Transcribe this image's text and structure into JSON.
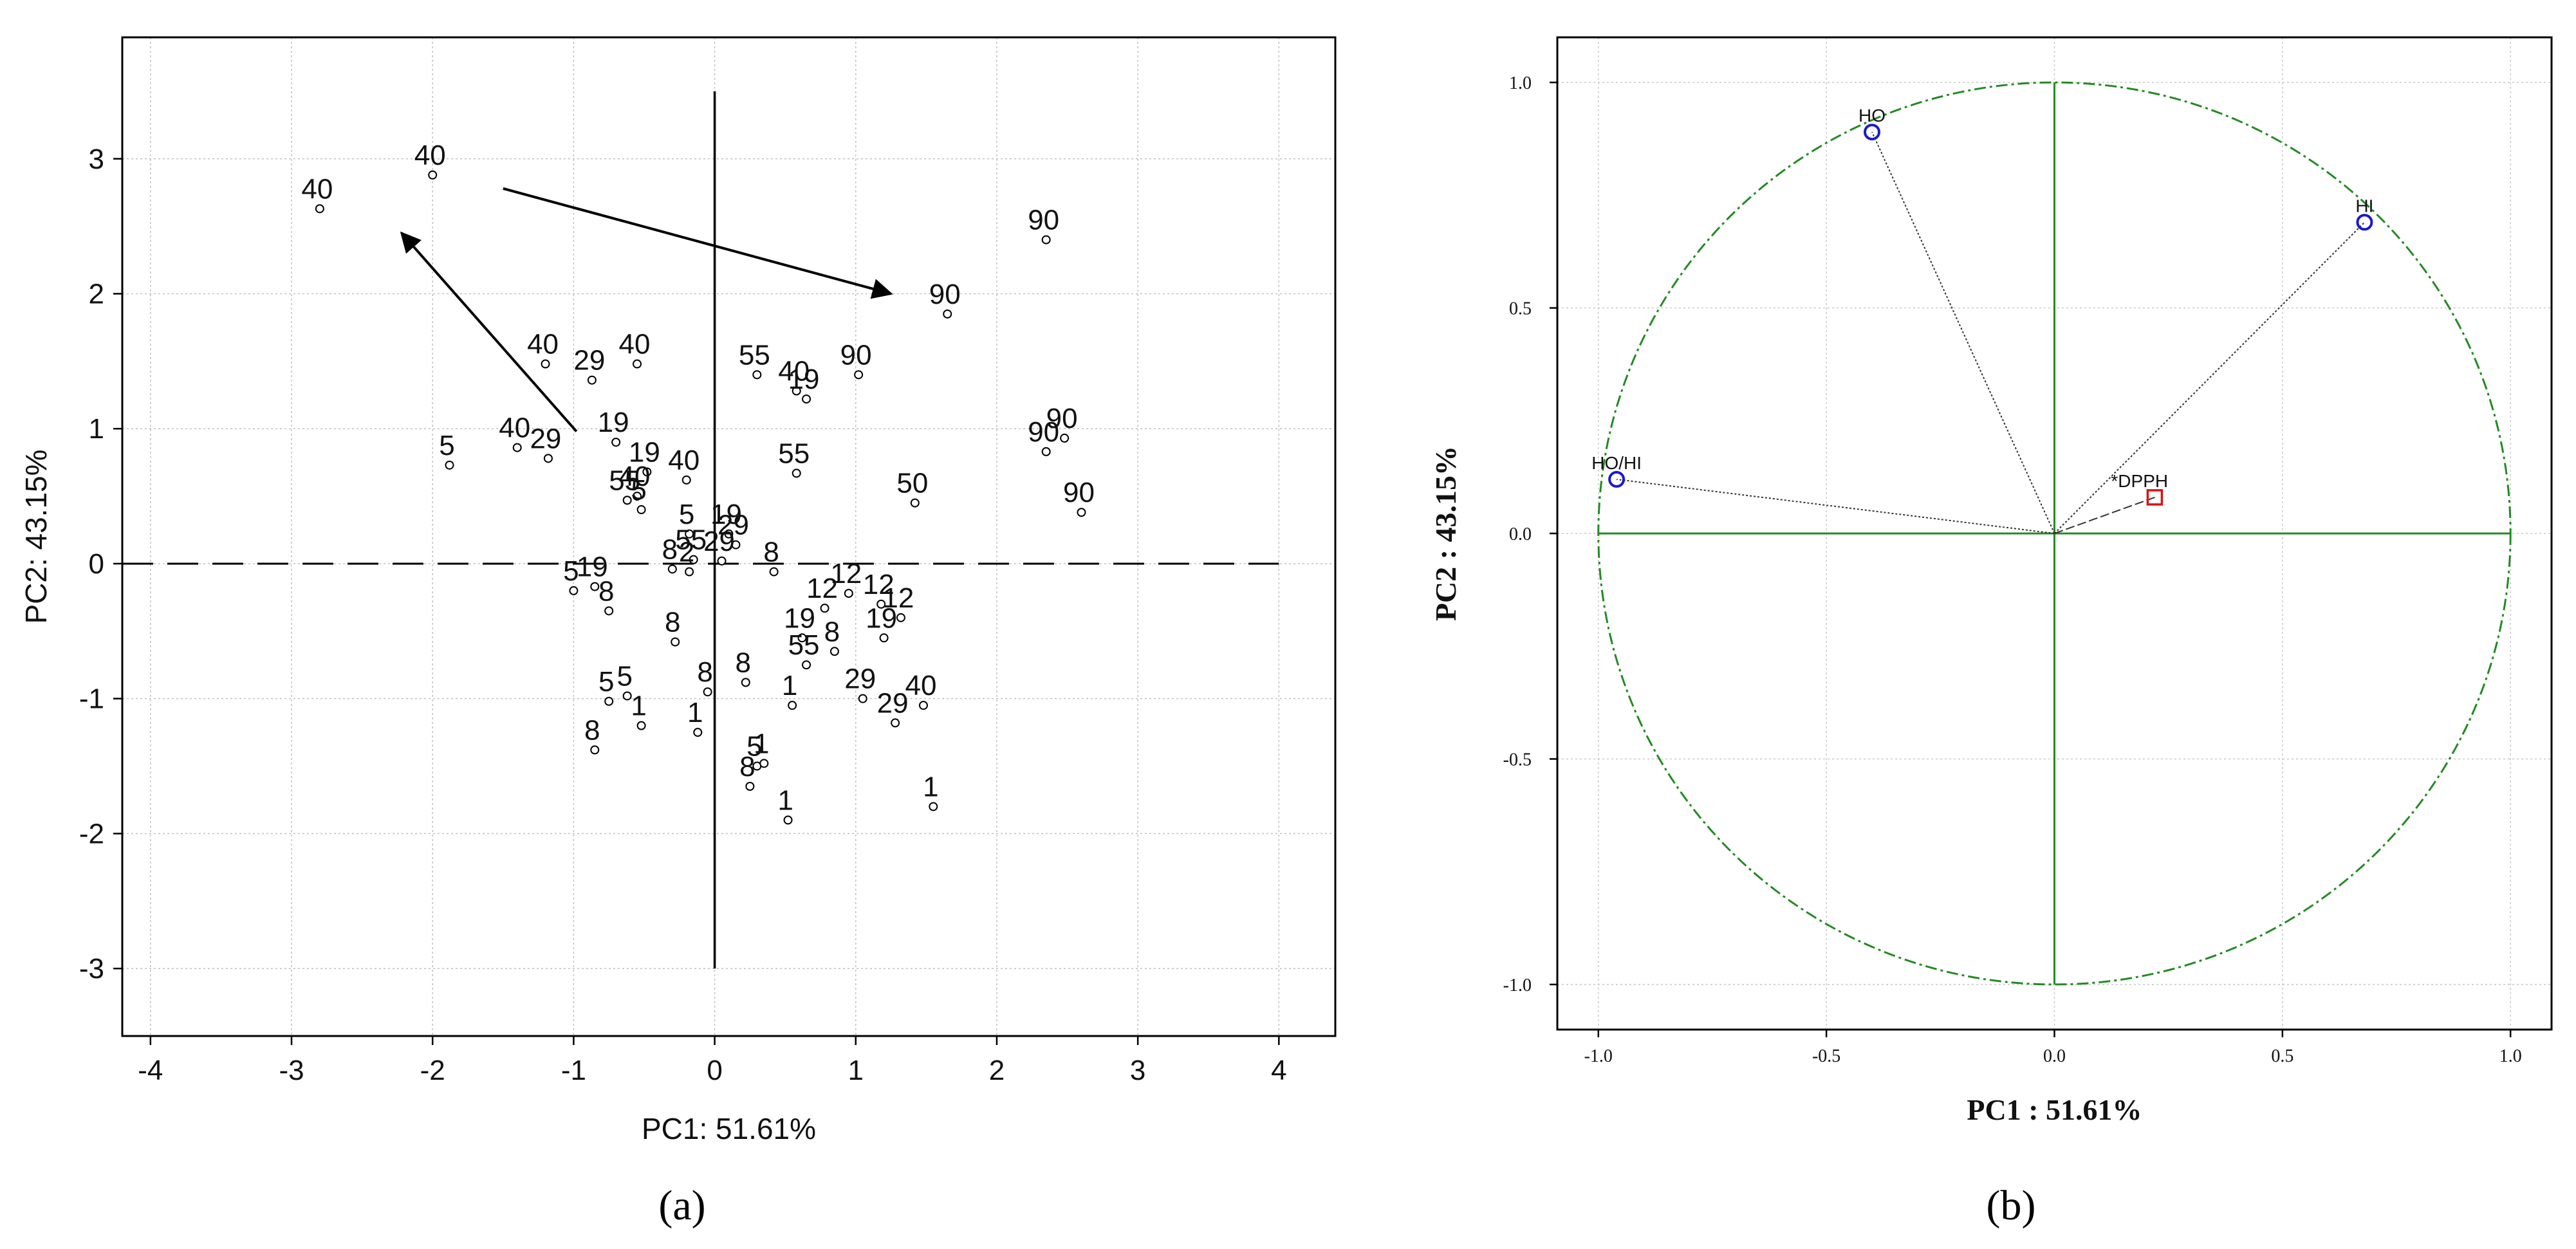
{
  "figure": {
    "panel_a_label": "(a)",
    "panel_b_label": "(b)"
  },
  "chart_data": [
    {
      "panel": "a",
      "type": "scatter",
      "title": "",
      "xlabel": "PC1: 51.61%",
      "ylabel": "PC2: 43.15%",
      "xlim": [
        -4.2,
        4.4
      ],
      "ylim": [
        -3.5,
        3.9
      ],
      "xticks": [
        "-4",
        "-3",
        "-2",
        "-1",
        "0",
        "1",
        "2",
        "3",
        "4"
      ],
      "yticks": [
        "3",
        "2",
        "1",
        "0",
        "-1",
        "-2",
        "-3"
      ],
      "grid": true,
      "reference_lines": {
        "horizontal_y": 0,
        "vertical_x": 0,
        "vertical_range": [
          -3,
          3.5
        ]
      },
      "arrows": [
        {
          "from": [
            -1.5,
            2.78
          ],
          "to": [
            1.25,
            2.0
          ]
        },
        {
          "from": [
            -0.98,
            0.98
          ],
          "to": [
            -2.22,
            2.45
          ]
        }
      ],
      "points": [
        {
          "label": "40",
          "x": -2.8,
          "y": 2.63
        },
        {
          "label": "40",
          "x": -2.0,
          "y": 2.88
        },
        {
          "label": "90",
          "x": 2.35,
          "y": 2.4
        },
        {
          "label": "90",
          "x": 1.65,
          "y": 1.85
        },
        {
          "label": "40",
          "x": -1.2,
          "y": 1.48
        },
        {
          "label": "29",
          "x": -0.87,
          "y": 1.36
        },
        {
          "label": "40",
          "x": -0.55,
          "y": 1.48
        },
        {
          "label": "55",
          "x": 0.3,
          "y": 1.4
        },
        {
          "label": "40",
          "x": 0.58,
          "y": 1.28
        },
        {
          "label": "19",
          "x": 0.65,
          "y": 1.22
        },
        {
          "label": "90",
          "x": 1.02,
          "y": 1.4
        },
        {
          "label": "5",
          "x": -1.88,
          "y": 0.73
        },
        {
          "label": "40",
          "x": -1.4,
          "y": 0.86
        },
        {
          "label": "29",
          "x": -1.18,
          "y": 0.78
        },
        {
          "label": "19",
          "x": -0.7,
          "y": 0.9
        },
        {
          "label": "19",
          "x": -0.48,
          "y": 0.68
        },
        {
          "label": "40",
          "x": -0.2,
          "y": 0.62
        },
        {
          "label": "55",
          "x": 0.58,
          "y": 0.67
        },
        {
          "label": "50",
          "x": 1.42,
          "y": 0.45
        },
        {
          "label": "90",
          "x": 2.35,
          "y": 0.83
        },
        {
          "label": "90",
          "x": 2.48,
          "y": 0.93
        },
        {
          "label": "90",
          "x": 2.6,
          "y": 0.38
        },
        {
          "label": "55",
          "x": -0.62,
          "y": 0.47
        },
        {
          "label": "40",
          "x": -0.55,
          "y": 0.5
        },
        {
          "label": "5",
          "x": -0.52,
          "y": 0.4
        },
        {
          "label": "5",
          "x": -0.18,
          "y": 0.22
        },
        {
          "label": "19",
          "x": 0.1,
          "y": 0.22
        },
        {
          "label": "29",
          "x": 0.15,
          "y": 0.14
        },
        {
          "label": "55",
          "x": -0.15,
          "y": 0.03
        },
        {
          "label": "29",
          "x": 0.05,
          "y": 0.02
        },
        {
          "label": "8",
          "x": -0.3,
          "y": -0.04
        },
        {
          "label": "2",
          "x": -0.18,
          "y": -0.06
        },
        {
          "label": "8",
          "x": 0.42,
          "y": -0.06
        },
        {
          "label": "5",
          "x": -1.0,
          "y": -0.2
        },
        {
          "label": "19",
          "x": -0.85,
          "y": -0.17
        },
        {
          "label": "8",
          "x": -0.75,
          "y": -0.35
        },
        {
          "label": "12",
          "x": 0.78,
          "y": -0.33
        },
        {
          "label": "12",
          "x": 0.95,
          "y": -0.22
        },
        {
          "label": "12",
          "x": 1.18,
          "y": -0.3
        },
        {
          "label": "12",
          "x": 1.32,
          "y": -0.4
        },
        {
          "label": "8",
          "x": -0.28,
          "y": -0.58
        },
        {
          "label": "19",
          "x": 0.62,
          "y": -0.55
        },
        {
          "label": "19",
          "x": 1.2,
          "y": -0.55
        },
        {
          "label": "55",
          "x": 0.65,
          "y": -0.75
        },
        {
          "label": "8",
          "x": 0.85,
          "y": -0.65
        },
        {
          "label": "5",
          "x": -0.75,
          "y": -1.02
        },
        {
          "label": "5",
          "x": -0.62,
          "y": -0.98
        },
        {
          "label": "1",
          "x": -0.52,
          "y": -1.2
        },
        {
          "label": "8",
          "x": -0.05,
          "y": -0.95
        },
        {
          "label": "1",
          "x": -0.12,
          "y": -1.25
        },
        {
          "label": "8",
          "x": 0.22,
          "y": -0.88
        },
        {
          "label": "1",
          "x": 0.55,
          "y": -1.05
        },
        {
          "label": "29",
          "x": 1.05,
          "y": -1.0
        },
        {
          "label": "29",
          "x": 1.28,
          "y": -1.18
        },
        {
          "label": "40",
          "x": 1.48,
          "y": -1.05
        },
        {
          "label": "8",
          "x": -0.85,
          "y": -1.38
        },
        {
          "label": "5",
          "x": 0.3,
          "y": -1.5
        },
        {
          "label": "1",
          "x": 0.35,
          "y": -1.48
        },
        {
          "label": "8",
          "x": 0.25,
          "y": -1.65
        },
        {
          "label": "1",
          "x": 0.52,
          "y": -1.9
        },
        {
          "label": "1",
          "x": 1.55,
          "y": -1.8
        }
      ]
    },
    {
      "panel": "b",
      "type": "scatter",
      "title": "",
      "xlabel": "PC1 : 51.61%",
      "ylabel": "PC2 : 43.15%",
      "xlim": [
        -1.09,
        1.09
      ],
      "ylim": [
        -1.1,
        1.1
      ],
      "xticks": [
        "-1.0",
        "-0.5",
        "0.0",
        "0.5",
        "1.0"
      ],
      "yticks": [
        "1.0",
        "0.5",
        "0.0",
        "-0.5",
        "-1.0"
      ],
      "grid": true,
      "unit_circle": true,
      "variables": [
        {
          "label": "HO",
          "x": -0.4,
          "y": 0.89,
          "marker": "circle",
          "color": "#1a1acc"
        },
        {
          "label": "HI",
          "x": 0.68,
          "y": 0.69,
          "marker": "circle",
          "color": "#1a1acc"
        },
        {
          "label": "HO/HI",
          "x": -0.96,
          "y": 0.12,
          "marker": "circle",
          "color": "#1a1acc"
        },
        {
          "label": "*DPPH",
          "x": 0.22,
          "y": 0.08,
          "marker": "square",
          "color": "#dd1111"
        }
      ]
    }
  ]
}
